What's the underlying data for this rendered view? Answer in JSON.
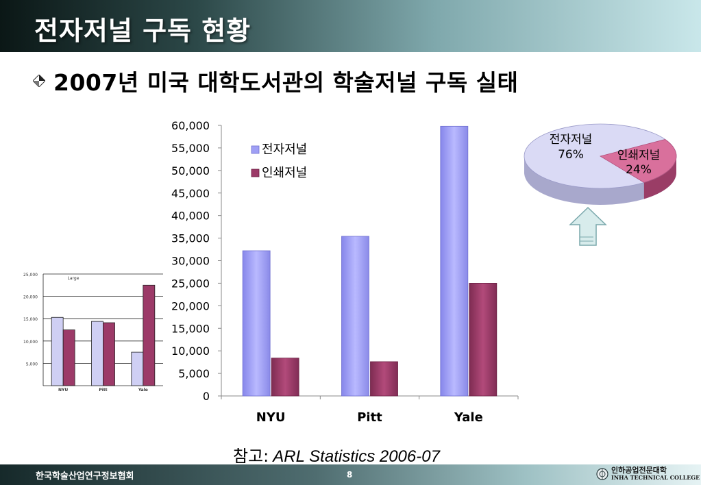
{
  "slide": {
    "title": "전자저널 구독 현황",
    "subtitle": "2007년 미국 대학도서관의 학술저널 구독 실태",
    "note_label": "참고:",
    "note_source": "ARL Statistics 2006-07",
    "footer_org": "한국학술산업연구정보협회",
    "page_number": "8",
    "logo_ko": "인하공업전문대학",
    "logo_en": "INHA TECHNICAL COLLEGE"
  },
  "colors": {
    "electronic": "#9f9ff5",
    "print": "#9c3a68",
    "pie_electronic": "#dadaf5",
    "pie_print": "#d9709c"
  },
  "chart_data": [
    {
      "type": "bar",
      "categories": [
        "NYU",
        "Pitt",
        "Yale"
      ],
      "series": [
        {
          "name": "전자저널",
          "values": [
            32200,
            35400,
            59800
          ]
        },
        {
          "name": "인쇄저널",
          "values": [
            8400,
            7600,
            25000
          ]
        }
      ],
      "yticks": [
        "0",
        "5,000",
        "10,000",
        "15,000",
        "20,000",
        "25,000",
        "30,000",
        "35,000",
        "40,000",
        "45,000",
        "50,000",
        "55,000",
        "60,000"
      ],
      "ylim": [
        0,
        60000
      ],
      "legend_position": "top-left",
      "grid": false
    },
    {
      "type": "pie",
      "labels": [
        "전자저널",
        "인쇄저널"
      ],
      "values": [
        76,
        24
      ],
      "value_labels": [
        "76%",
        "24%"
      ]
    },
    {
      "type": "bar",
      "title": "Large",
      "categories": [
        "NYU",
        "Pitt",
        "Yale"
      ],
      "series": [
        {
          "values": [
            15300,
            14400,
            7500
          ]
        },
        {
          "values": [
            12500,
            14100,
            22500
          ]
        }
      ],
      "yticks": [
        "5,000",
        "10,000",
        "15,000",
        "20,000",
        "25,000"
      ],
      "ylim": [
        0,
        25000
      ],
      "grid": true
    }
  ]
}
